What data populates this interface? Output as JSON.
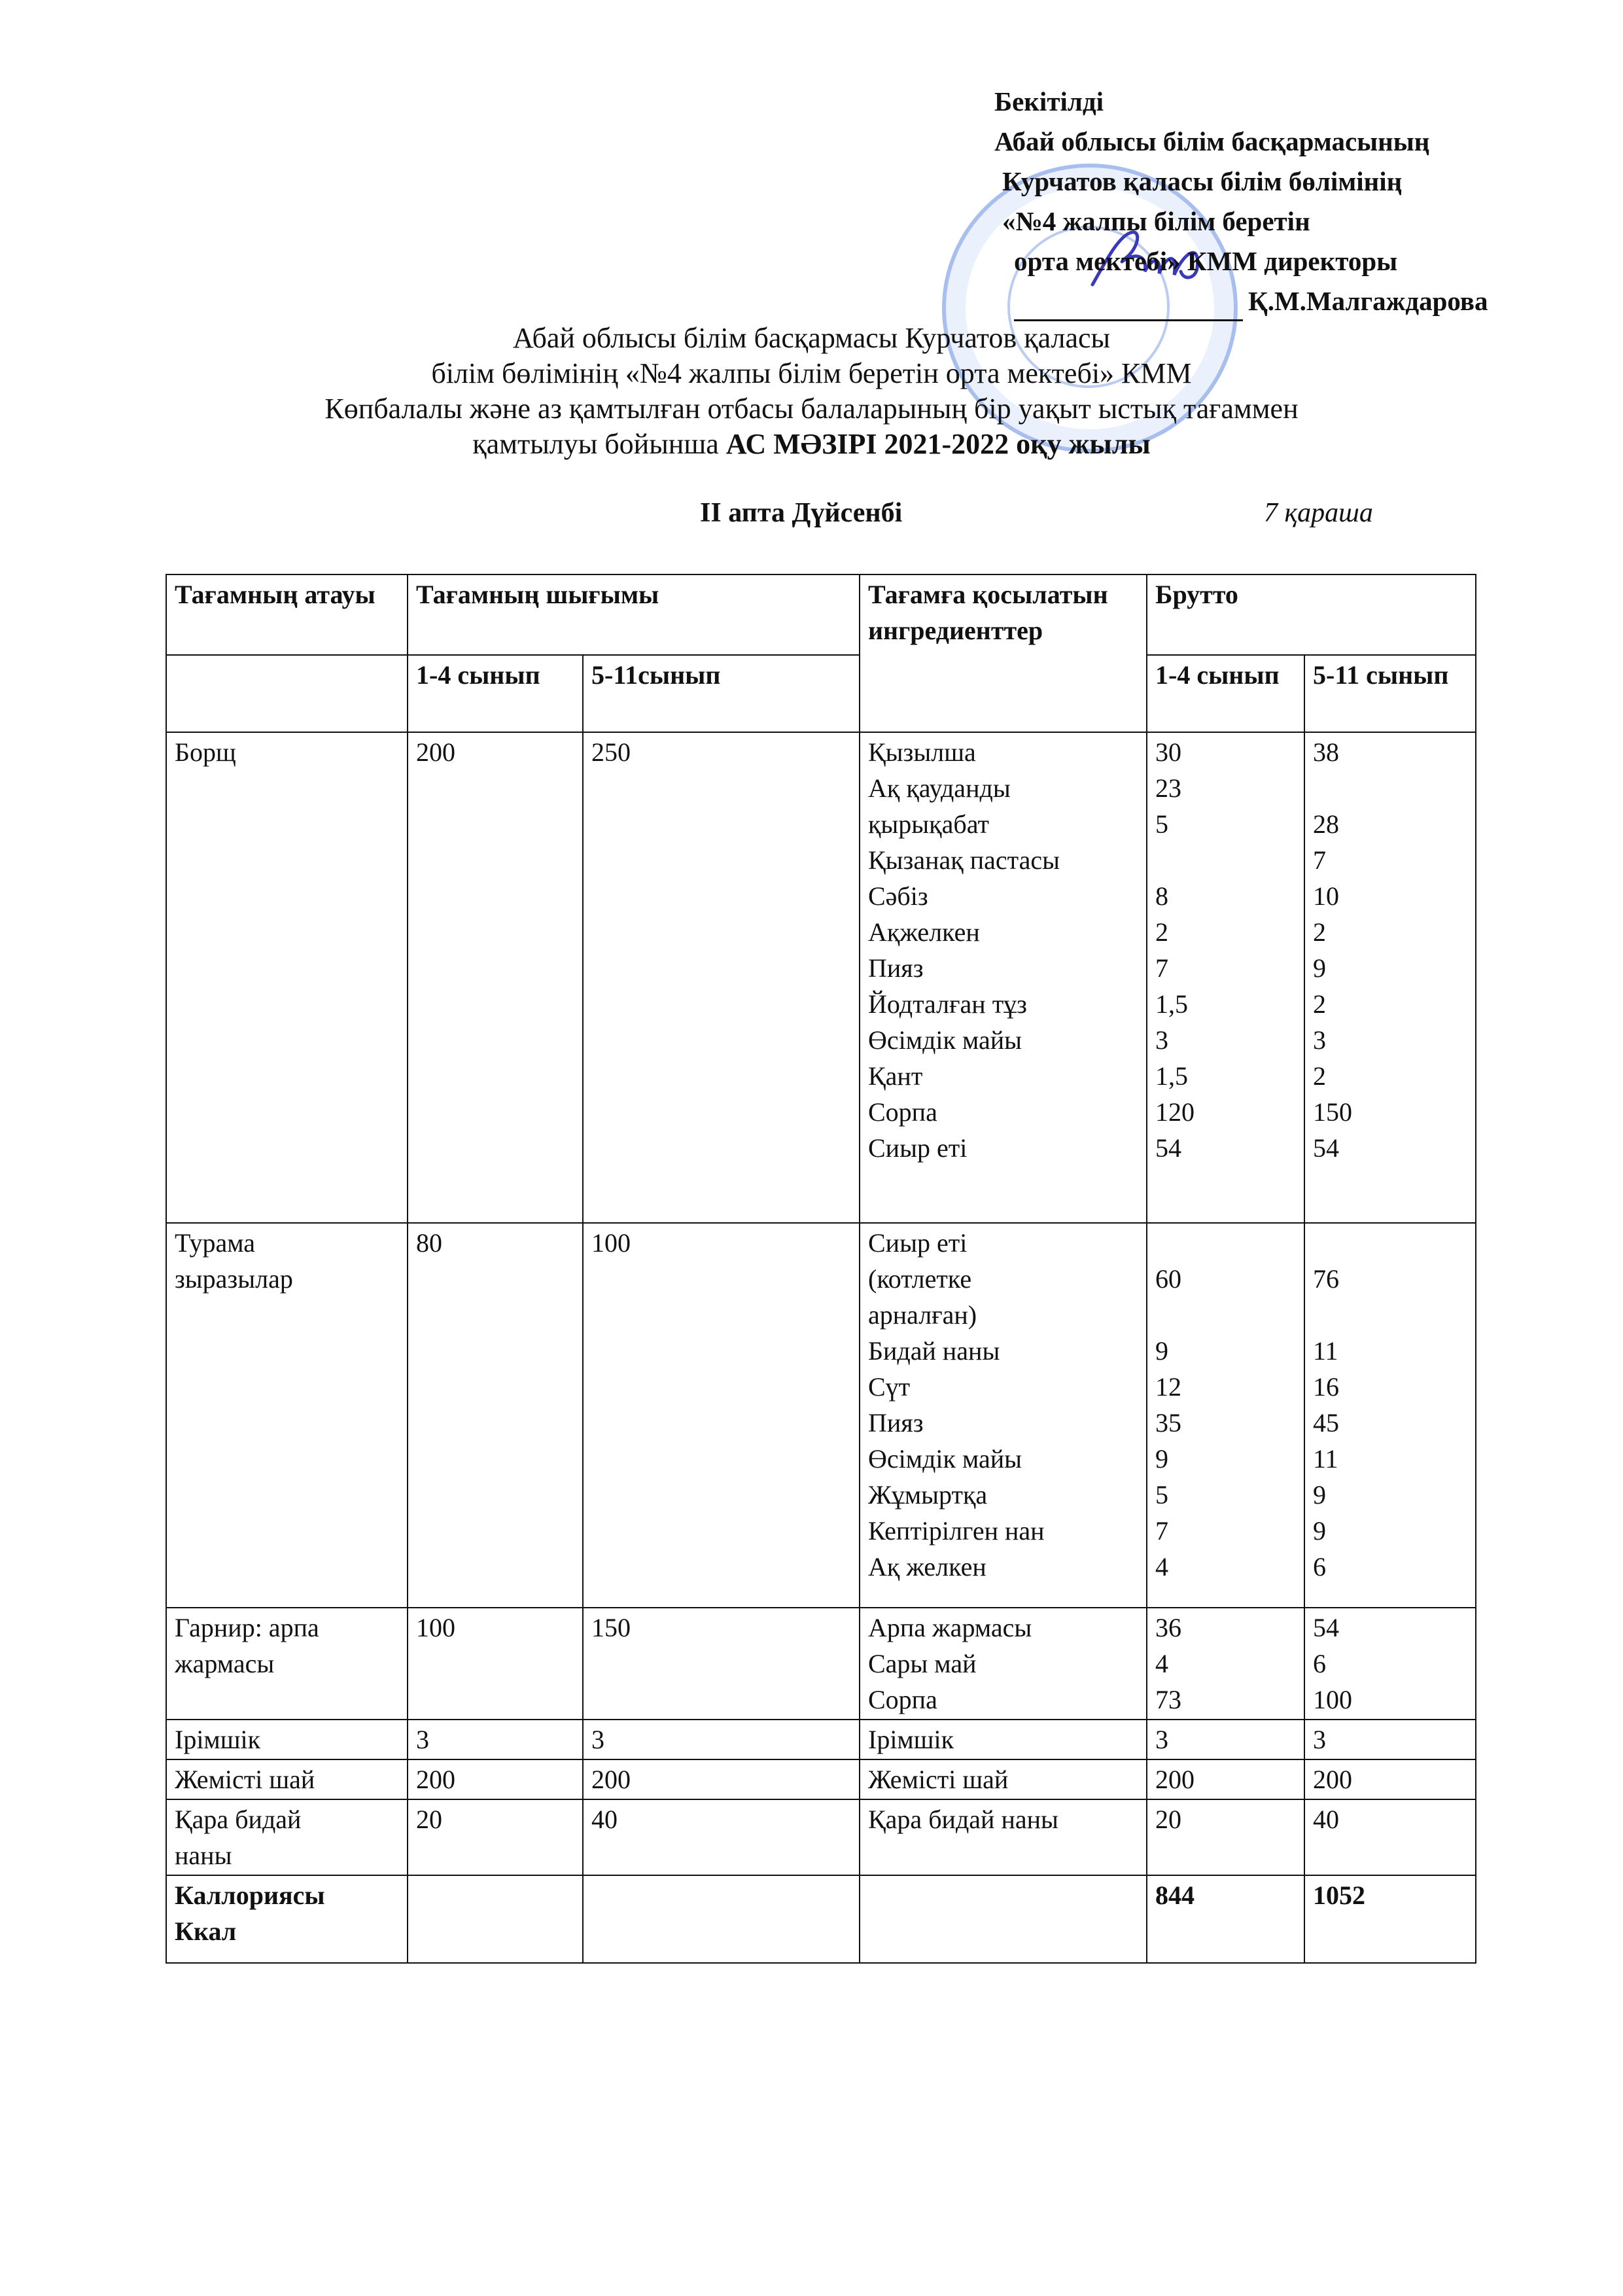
{
  "approval": {
    "lines": [
      "Бекітілді",
      "Абай облысы білім басқармасының",
      "Курчатов қаласы білім бөлімінің",
      "«№4 жалпы білім беретін",
      "орта мектебі» КММ директоры"
    ],
    "signatory": "Қ.М.Малгаждарова"
  },
  "title": {
    "lines": [
      "Абай облысы білім басқармасы Курчатов қаласы",
      "білім бөлімінің «№4 жалпы білім беретін орта мектебі» КММ",
      "Көпбалалы және аз қамтылған отбасы балаларының бір уақыт ыстық тағаммен"
    ],
    "last_prefix": "қамтылуы бойынша ",
    "last_bold": "АС МӘЗІРІ 2021-2022 оқу жылы"
  },
  "week": "ІІ апта Дүйсенбі",
  "date": "7 қараша",
  "table": {
    "headers": {
      "name": "Тағамның атауы",
      "output": "Тағамның шығымы",
      "ingredients": "Тағамға қосылатын ингредиенттер",
      "brutto": "Брутто",
      "g14": "1-4 сынып",
      "g511": "5-11сынып",
      "b14": "1-4 сынып",
      "b511": "5-11 сынып"
    },
    "rows": [
      {
        "name": [
          "Борщ"
        ],
        "out14": "200",
        "out511": "250",
        "ingredients": [
          "Қызылша",
          "Ақ қауданды",
          "қырықабат",
          "Қызанақ пастасы",
          "Сәбіз",
          "Ақжелкен",
          "Пияз",
          "Йодталған тұз",
          "Өсімдік майы",
          "Қант",
          "Сорпа",
          "Сиыр еті"
        ],
        "b14": [
          "30",
          "23",
          "5",
          "",
          "8",
          "2",
          "7",
          "1,5",
          "3",
          "1,5",
          "120",
          "54"
        ],
        "b511": [
          "38",
          "",
          "28",
          "7",
          "10",
          "2",
          "9",
          "2",
          "3",
          "2",
          "150",
          "54"
        ]
      },
      {
        "name": [
          "Турама",
          "зыразылар"
        ],
        "out14": "80",
        "out511": "100",
        "ingredients": [
          "Сиыр еті",
          "(котлетке",
          "арналған)",
          "Бидай наны",
          "Сүт",
          "Пияз",
          "Өсімдік майы",
          "Жұмыртқа",
          "Кептірілген нан",
          "Ақ желкен"
        ],
        "b14": [
          "",
          "60",
          "",
          "9",
          "12",
          "35",
          "9",
          "5",
          "7",
          "4"
        ],
        "b511": [
          "",
          "76",
          "",
          "11",
          "16",
          "45",
          "11",
          "9",
          "9",
          "6"
        ]
      },
      {
        "name": [
          "Гарнир: арпа",
          "жармасы"
        ],
        "out14": "100",
        "out511": "150",
        "ingredients": [
          "Арпа жармасы",
          "Сары май",
          "Сорпа"
        ],
        "b14": [
          "36",
          "4",
          "73"
        ],
        "b511": [
          "54",
          "6",
          "100"
        ]
      },
      {
        "name": [
          "Ірімшік"
        ],
        "out14": "3",
        "out511": "3",
        "ingredients": [
          "Ірімшік"
        ],
        "b14": [
          "3"
        ],
        "b511": [
          "3"
        ]
      },
      {
        "name": [
          "Жемісті шай"
        ],
        "out14": "200",
        "out511": "200",
        "ingredients": [
          "Жемісті шай"
        ],
        "b14": [
          "200"
        ],
        "b511": [
          "200"
        ]
      },
      {
        "name": [
          "Қара бидай",
          "наны"
        ],
        "out14": "20",
        "out511": "40",
        "ingredients": [
          "Қара бидай наны"
        ],
        "b14": [
          "20"
        ],
        "b511": [
          "40"
        ]
      }
    ],
    "total": {
      "label": [
        "Каллориясы",
        "Ккал"
      ],
      "b14": "844",
      "b511": "1052"
    }
  }
}
